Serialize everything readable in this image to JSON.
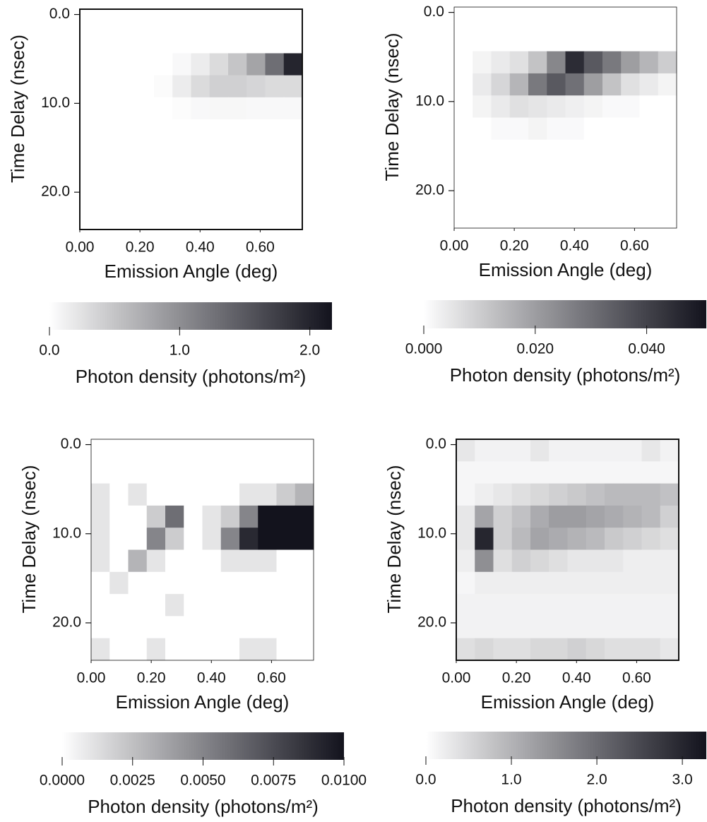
{
  "chart_data": [
    {
      "type": "heatmap",
      "xlabel": "Emission Angle (deg)",
      "ylabel": "Time Delay (nsec)",
      "xlim": [
        0,
        0.74
      ],
      "ylim": [
        -0.6,
        24.2
      ],
      "xticks": [
        {
          "value": 0,
          "label": "0.00"
        },
        {
          "value": 0.2,
          "label": "0.20"
        },
        {
          "value": 0.4,
          "label": "0.40"
        },
        {
          "value": 0.6,
          "label": "0.60"
        }
      ],
      "yticks": [
        {
          "value": 0,
          "label": "0.0"
        },
        {
          "value": 10,
          "label": "10.0"
        },
        {
          "value": 20,
          "label": "20.0"
        }
      ],
      "colorbar_label": "Photon density (photons/m²)",
      "clim": [
        0,
        2.17
      ],
      "cticks": [
        {
          "value": 0,
          "label": "0.0"
        },
        {
          "value": 1,
          "label": "1.0"
        },
        {
          "value": 2,
          "label": "2.0"
        }
      ],
      "z": [
        [
          0,
          0,
          0,
          0,
          0,
          0,
          0,
          0,
          0,
          0,
          0,
          0
        ],
        [
          0,
          0,
          0,
          0,
          0,
          0,
          0,
          0,
          0,
          0,
          0,
          0
        ],
        [
          0,
          0,
          0,
          0,
          0,
          0.05,
          0.15,
          0.3,
          0.5,
          0.8,
          1.3,
          2.0
        ],
        [
          0,
          0,
          0,
          0,
          0.03,
          0.15,
          0.3,
          0.4,
          0.4,
          0.35,
          0.3,
          0.3
        ],
        [
          0,
          0,
          0,
          0,
          0,
          0.02,
          0.05,
          0.06,
          0.06,
          0.05,
          0.05,
          0.05
        ],
        [
          0,
          0,
          0,
          0,
          0,
          0,
          0,
          0,
          0,
          0,
          0,
          0
        ],
        [
          0,
          0,
          0,
          0,
          0,
          0,
          0,
          0,
          0,
          0,
          0,
          0
        ],
        [
          0,
          0,
          0,
          0,
          0,
          0,
          0,
          0,
          0,
          0,
          0,
          0
        ],
        [
          0,
          0,
          0,
          0,
          0,
          0,
          0,
          0,
          0,
          0,
          0,
          0
        ],
        [
          0,
          0,
          0,
          0,
          0,
          0,
          0,
          0,
          0,
          0,
          0,
          0
        ]
      ]
    },
    {
      "type": "heatmap",
      "xlabel": "Emission Angle (deg)",
      "ylabel": "Time Delay (nsec)",
      "xlim": [
        0,
        0.74
      ],
      "ylim": [
        -0.6,
        24.2
      ],
      "xticks": [
        {
          "value": 0,
          "label": "0.00"
        },
        {
          "value": 0.2,
          "label": "0.20"
        },
        {
          "value": 0.4,
          "label": "0.40"
        },
        {
          "value": 0.6,
          "label": "0.60"
        }
      ],
      "yticks": [
        {
          "value": 0,
          "label": "0.0"
        },
        {
          "value": 10,
          "label": "10.0"
        },
        {
          "value": 20,
          "label": "20.0"
        }
      ],
      "colorbar_label": "Photon density (photons/m²)",
      "clim": [
        0,
        0.0507
      ],
      "cticks": [
        {
          "value": 0,
          "label": "0.000"
        },
        {
          "value": 0.02,
          "label": "0.020"
        },
        {
          "value": 0.04,
          "label": "0.040"
        }
      ],
      "z": [
        [
          0,
          0,
          0,
          0,
          0,
          0,
          0,
          0,
          0,
          0,
          0,
          0
        ],
        [
          0,
          0,
          0,
          0,
          0,
          0,
          0,
          0,
          0,
          0,
          0,
          0
        ],
        [
          0,
          0.002,
          0.004,
          0.006,
          0.012,
          0.025,
          0.045,
          0.035,
          0.028,
          0.02,
          0.015,
          0.01
        ],
        [
          0,
          0.004,
          0.008,
          0.015,
          0.028,
          0.035,
          0.03,
          0.02,
          0.012,
          0.006,
          0.004,
          0.002
        ],
        [
          0,
          0.002,
          0.004,
          0.006,
          0.005,
          0.004,
          0.003,
          0.002,
          0.001,
          0.001,
          0,
          0
        ],
        [
          0,
          0,
          0.001,
          0.001,
          0.002,
          0.001,
          0.001,
          0,
          0,
          0,
          0,
          0
        ],
        [
          0,
          0,
          0,
          0,
          0,
          0,
          0,
          0,
          0,
          0,
          0,
          0
        ],
        [
          0,
          0,
          0,
          0,
          0,
          0,
          0,
          0,
          0,
          0,
          0,
          0
        ],
        [
          0,
          0,
          0,
          0,
          0,
          0,
          0,
          0,
          0,
          0,
          0,
          0
        ],
        [
          0,
          0,
          0,
          0,
          0,
          0,
          0,
          0,
          0,
          0,
          0,
          0
        ]
      ]
    },
    {
      "type": "heatmap",
      "xlabel": "Emission Angle (deg)",
      "ylabel": "Time Delay (nsec)",
      "xlim": [
        0,
        0.74
      ],
      "ylim": [
        -0.6,
        24.2
      ],
      "xticks": [
        {
          "value": 0,
          "label": "0.00"
        },
        {
          "value": 0.2,
          "label": "0.20"
        },
        {
          "value": 0.4,
          "label": "0.40"
        },
        {
          "value": 0.6,
          "label": "0.60"
        }
      ],
      "yticks": [
        {
          "value": 0,
          "label": "0.0"
        },
        {
          "value": 10,
          "label": "10.0"
        },
        {
          "value": 20,
          "label": "20.0"
        }
      ],
      "colorbar_label": "Photon density (photons/m²)",
      "clim": [
        0,
        0.01
      ],
      "cticks": [
        {
          "value": 0,
          "label": "0.0000"
        },
        {
          "value": 0.0025,
          "label": "0.0025"
        },
        {
          "value": 0.005,
          "label": "0.0050"
        },
        {
          "value": 0.0075,
          "label": "0.0075"
        },
        {
          "value": 0.01,
          "label": "0.0100"
        }
      ],
      "z": [
        [
          0,
          0,
          0,
          0,
          0,
          0,
          0,
          0,
          0,
          0,
          0,
          0
        ],
        [
          0,
          0,
          0,
          0,
          0,
          0,
          0,
          0,
          0,
          0,
          0,
          0
        ],
        [
          0.001,
          0,
          0.001,
          0,
          0,
          0,
          0,
          0,
          0.001,
          0.001,
          0.002,
          0.003
        ],
        [
          0.001,
          0,
          0,
          0.002,
          0.006,
          0,
          0.001,
          0.002,
          0.005,
          0.01,
          0.01,
          0.01
        ],
        [
          0.001,
          0,
          0,
          0.005,
          0.002,
          0,
          0.001,
          0.005,
          0.009,
          0.01,
          0.01,
          0.01
        ],
        [
          0.001,
          0,
          0.003,
          0.001,
          0,
          0,
          0,
          0.001,
          0.001,
          0.001,
          0,
          0
        ],
        [
          0,
          0.001,
          0,
          0,
          0,
          0,
          0,
          0,
          0,
          0,
          0,
          0
        ],
        [
          0,
          0,
          0,
          0,
          0.001,
          0,
          0,
          0,
          0,
          0,
          0,
          0
        ],
        [
          0,
          0,
          0,
          0,
          0,
          0,
          0,
          0,
          0,
          0,
          0,
          0
        ],
        [
          0.001,
          0,
          0,
          0.001,
          0,
          0,
          0,
          0,
          0.001,
          0.001,
          0,
          0
        ]
      ]
    },
    {
      "type": "heatmap",
      "xlabel": "Emission Angle (deg)",
      "ylabel": "Time Delay (nsec)",
      "xlim": [
        0,
        0.74
      ],
      "ylim": [
        -0.6,
        24.2
      ],
      "xticks": [
        {
          "value": 0,
          "label": "0.00"
        },
        {
          "value": 0.2,
          "label": "0.20"
        },
        {
          "value": 0.4,
          "label": "0.40"
        },
        {
          "value": 0.6,
          "label": "0.60"
        }
      ],
      "yticks": [
        {
          "value": 0,
          "label": "0.0"
        },
        {
          "value": 10,
          "label": "10.0"
        },
        {
          "value": 20,
          "label": "20.0"
        }
      ],
      "colorbar_label": "Photon density (photons/m²)",
      "clim": [
        0,
        3.28
      ],
      "cticks": [
        {
          "value": 0,
          "label": "0.0"
        },
        {
          "value": 1,
          "label": "1.0"
        },
        {
          "value": 2,
          "label": "2.0"
        },
        {
          "value": 3,
          "label": "3.0"
        }
      ],
      "z": [
        [
          0.3,
          0.15,
          0.15,
          0.15,
          0.3,
          0.15,
          0.15,
          0.15,
          0.15,
          0.15,
          0.3,
          0.15
        ],
        [
          0.1,
          0.1,
          0.1,
          0.1,
          0.1,
          0.1,
          0.1,
          0.1,
          0.1,
          0.1,
          0.1,
          0.1
        ],
        [
          0.1,
          0.2,
          0.3,
          0.4,
          0.5,
          0.6,
          0.7,
          0.8,
          0.9,
          0.9,
          0.9,
          0.8
        ],
        [
          0.3,
          1.2,
          0.6,
          0.8,
          1.1,
          1.3,
          1.3,
          1.2,
          1.1,
          1.0,
          0.9,
          0.6
        ],
        [
          0.3,
          3.0,
          0.6,
          0.9,
          1.2,
          1.1,
          1.0,
          0.9,
          0.7,
          0.6,
          0.5,
          0.4
        ],
        [
          0.2,
          1.5,
          0.4,
          0.6,
          0.5,
          0.4,
          0.3,
          0.3,
          0.3,
          0.2,
          0.2,
          0.2
        ],
        [
          0.1,
          0.2,
          0.2,
          0.2,
          0.2,
          0.2,
          0.2,
          0.2,
          0.2,
          0.2,
          0.2,
          0.2
        ],
        [
          0.15,
          0.15,
          0.15,
          0.15,
          0.15,
          0.15,
          0.15,
          0.15,
          0.15,
          0.15,
          0.15,
          0.15
        ],
        [
          0.15,
          0.15,
          0.15,
          0.15,
          0.15,
          0.15,
          0.15,
          0.15,
          0.15,
          0.15,
          0.15,
          0.15
        ],
        [
          0.4,
          0.5,
          0.4,
          0.4,
          0.5,
          0.5,
          0.6,
          0.5,
          0.4,
          0.4,
          0.4,
          0.3
        ]
      ]
    }
  ]
}
